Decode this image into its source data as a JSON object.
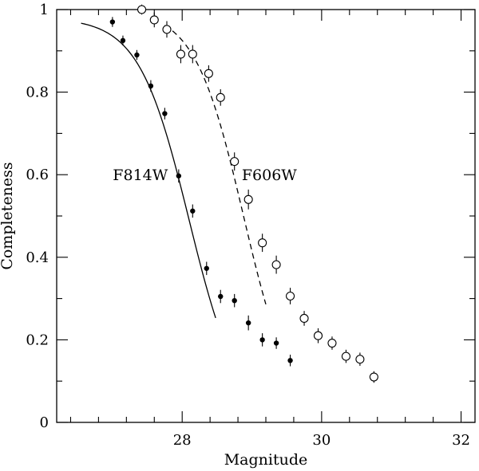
{
  "chart_data": {
    "type": "scatter",
    "title": "",
    "xlabel": "Magnitude",
    "ylabel": "Completeness",
    "xlim": [
      26.2,
      32.2
    ],
    "ylim": [
      0,
      1
    ],
    "x_ticks": [
      28,
      30,
      32
    ],
    "x_tick_labels": [
      "28",
      "30",
      "32"
    ],
    "x_minor_step": 0.4,
    "y_ticks": [
      0,
      0.2,
      0.4,
      0.6,
      0.8,
      1
    ],
    "y_tick_labels": [
      "0",
      "0.2",
      "0.4",
      "0.6",
      "0.8",
      "1"
    ],
    "y_minor_step": 0.1,
    "series": [
      {
        "name": "F814W",
        "marker": "filled-circle",
        "points": [
          {
            "x": 27.0,
            "y": 0.97,
            "err": 0.012
          },
          {
            "x": 27.15,
            "y": 0.925,
            "err": 0.012
          },
          {
            "x": 27.35,
            "y": 0.89,
            "err": 0.012
          },
          {
            "x": 27.55,
            "y": 0.815,
            "err": 0.014
          },
          {
            "x": 27.75,
            "y": 0.748,
            "err": 0.014
          },
          {
            "x": 27.95,
            "y": 0.597,
            "err": 0.016
          },
          {
            "x": 28.15,
            "y": 0.512,
            "err": 0.016
          },
          {
            "x": 28.35,
            "y": 0.373,
            "err": 0.016
          },
          {
            "x": 28.55,
            "y": 0.305,
            "err": 0.016
          },
          {
            "x": 28.75,
            "y": 0.295,
            "err": 0.016
          },
          {
            "x": 28.95,
            "y": 0.241,
            "err": 0.018
          },
          {
            "x": 29.15,
            "y": 0.2,
            "err": 0.016
          },
          {
            "x": 29.35,
            "y": 0.192,
            "err": 0.014
          },
          {
            "x": 29.55,
            "y": 0.15,
            "err": 0.014
          }
        ]
      },
      {
        "name": "F606W",
        "marker": "open-circle",
        "points": [
          {
            "x": 27.42,
            "y": 1.0,
            "err": 0.012
          },
          {
            "x": 27.6,
            "y": 0.975,
            "err": 0.018
          },
          {
            "x": 27.78,
            "y": 0.952,
            "err": 0.02
          },
          {
            "x": 27.98,
            "y": 0.892,
            "err": 0.022
          },
          {
            "x": 28.15,
            "y": 0.892,
            "err": 0.022
          },
          {
            "x": 28.38,
            "y": 0.845,
            "err": 0.02
          },
          {
            "x": 28.55,
            "y": 0.787,
            "err": 0.02
          },
          {
            "x": 28.75,
            "y": 0.632,
            "err": 0.022
          },
          {
            "x": 28.95,
            "y": 0.54,
            "err": 0.024
          },
          {
            "x": 29.15,
            "y": 0.435,
            "err": 0.022
          },
          {
            "x": 29.35,
            "y": 0.382,
            "err": 0.022
          },
          {
            "x": 29.55,
            "y": 0.306,
            "err": 0.02
          },
          {
            "x": 29.75,
            "y": 0.252,
            "err": 0.018
          },
          {
            "x": 29.95,
            "y": 0.21,
            "err": 0.018
          },
          {
            "x": 30.15,
            "y": 0.192,
            "err": 0.016
          },
          {
            "x": 30.35,
            "y": 0.16,
            "err": 0.016
          },
          {
            "x": 30.55,
            "y": 0.153,
            "err": 0.016
          },
          {
            "x": 30.75,
            "y": 0.11,
            "err": 0.014
          }
        ]
      }
    ],
    "fits": [
      {
        "series": "F814W",
        "style": "solid",
        "x_range": [
          26.55,
          28.48
        ],
        "center": 28.1,
        "width": 0.36,
        "amplitude": 0.98
      },
      {
        "series": "F606W",
        "style": "dashed",
        "x_range": [
          27.75,
          29.2
        ],
        "center": 28.88,
        "width": 0.35,
        "amplitude": 1.0
      }
    ],
    "annotations": [
      {
        "text": "F814W",
        "x": 27.4,
        "y": 0.6
      },
      {
        "text": "F606W",
        "x": 29.25,
        "y": 0.6
      }
    ]
  }
}
